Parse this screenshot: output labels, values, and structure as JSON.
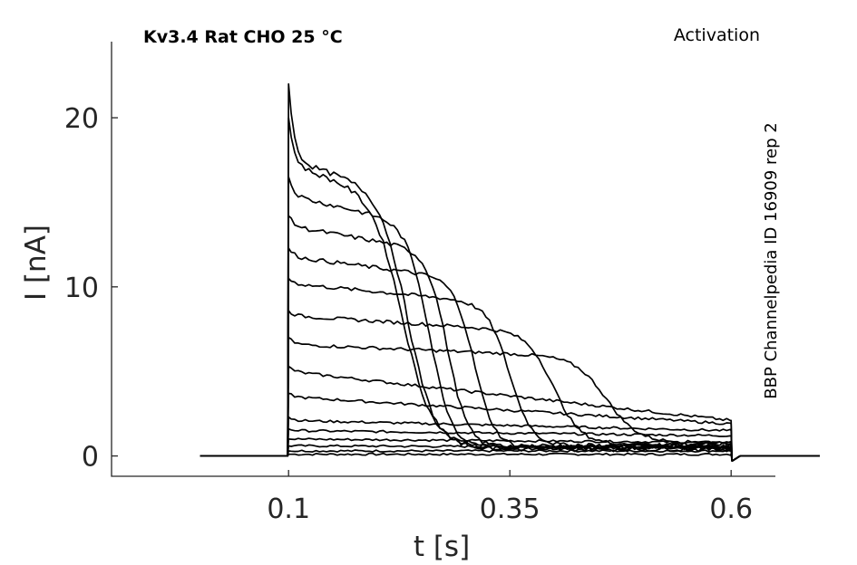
{
  "chart_data": {
    "type": "line",
    "title": "Kv3.4  Rat  CHO  25 °C",
    "corner_label": "Activation",
    "side_label": "BBP Channelpedia ID 16909 rep 2",
    "xlabel": "t [s]",
    "ylabel": "I [nA]",
    "xlim": [
      -0.1,
      0.65
    ],
    "ylim": [
      -1.2,
      24.5
    ],
    "xticks": [
      0.1,
      0.35,
      0.6
    ],
    "xtick_labels": [
      "0.1",
      "0.35",
      "0.6"
    ],
    "yticks": [
      0,
      10,
      20
    ],
    "ytick_labels": [
      "0",
      "10",
      "20"
    ],
    "grid": false,
    "legend": "none",
    "stimulus": {
      "t_start": 0.0,
      "t_on": 0.1,
      "t_off": 0.6,
      "t_end": 0.7
    },
    "series": [
      {
        "peak": 0.1,
        "plateau": 0.1,
        "end": 0.1,
        "inact_mid": null,
        "inact_width": null
      },
      {
        "peak": 0.3,
        "plateau": 0.3,
        "end": 0.3,
        "inact_mid": null,
        "inact_width": null
      },
      {
        "peak": 0.6,
        "plateau": 0.6,
        "end": 0.5,
        "inact_mid": null,
        "inact_width": null
      },
      {
        "peak": 1.0,
        "plateau": 1.0,
        "end": 0.8,
        "inact_mid": null,
        "inact_width": null
      },
      {
        "peak": 1.6,
        "plateau": 1.5,
        "end": 1.2,
        "inact_mid": null,
        "inact_width": null
      },
      {
        "peak": 2.3,
        "plateau": 2.1,
        "end": 1.5,
        "inact_mid": null,
        "inact_width": null
      },
      {
        "peak": 3.7,
        "plateau": 3.5,
        "end": 1.9,
        "inact_mid": null,
        "inact_width": null
      },
      {
        "peak": 5.3,
        "plateau": 5.0,
        "end": 2.1,
        "inact_mid": null,
        "inact_width": null
      },
      {
        "peak": 7.0,
        "plateau": 6.6,
        "end": 0.8,
        "inact_mid": 0.46,
        "inact_width": 0.07
      },
      {
        "peak": 8.6,
        "plateau": 8.3,
        "end": 0.7,
        "inact_mid": 0.4,
        "inact_width": 0.06
      },
      {
        "peak": 10.5,
        "plateau": 10.2,
        "end": 0.6,
        "inact_mid": 0.35,
        "inact_width": 0.05
      },
      {
        "peak": 12.3,
        "plateau": 11.8,
        "end": 0.5,
        "inact_mid": 0.31,
        "inact_width": 0.045
      },
      {
        "peak": 14.2,
        "plateau": 13.6,
        "end": 0.5,
        "inact_mid": 0.28,
        "inact_width": 0.045
      },
      {
        "peak": 16.5,
        "plateau": 15.4,
        "end": 0.4,
        "inact_mid": 0.26,
        "inact_width": 0.05
      },
      {
        "peak": 20.0,
        "plateau": 17.2,
        "end": 0.6,
        "inact_mid": 0.23,
        "inact_width": 0.065
      },
      {
        "peak": 22.0,
        "plateau": 17.5,
        "end": 0.5,
        "inact_mid": 0.235,
        "inact_width": 0.06
      }
    ]
  }
}
